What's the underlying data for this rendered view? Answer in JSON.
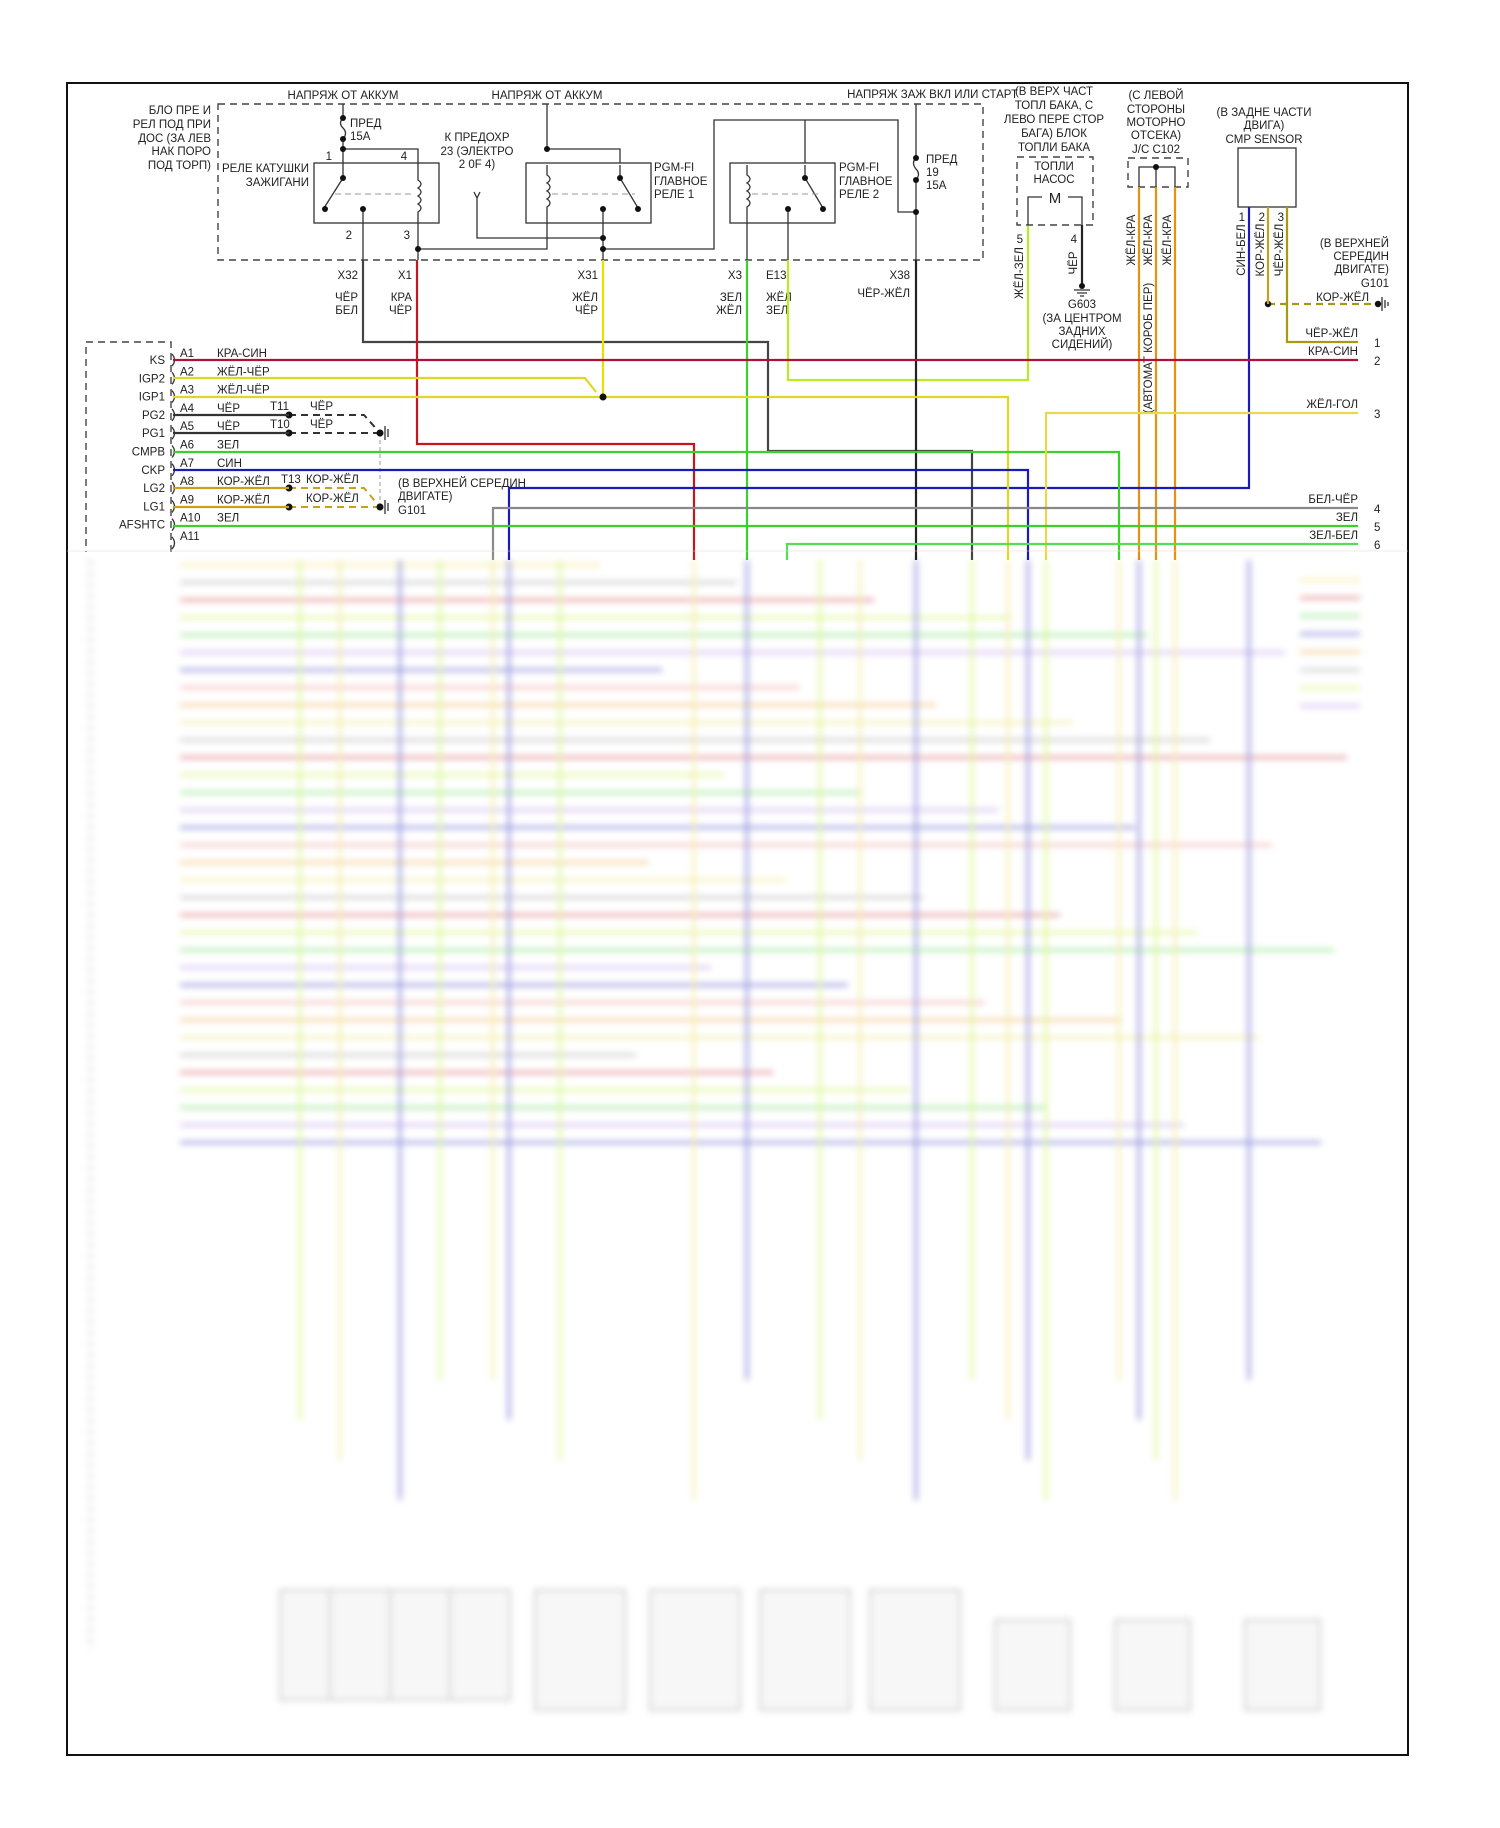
{
  "header_labels": {
    "battery_voltage_1": "НАПРЯЖ ОТ АККУМ",
    "battery_voltage_2": "НАПРЯЖ ОТ АККУМ",
    "ignition_voltage": "НАПРЯЖ ЗАЖ ВКЛ ИЛИ СТАРТ"
  },
  "fuse_box_location": [
    "БЛО ПРЕ И",
    "РЕЛ ПОД ПРИ",
    "ДОС (ЗА ЛЕВ",
    "НАК ПОРО",
    "ПОД ТОРП)"
  ],
  "fuse_15a": [
    "ПРЕД",
    "15А"
  ],
  "ignition_relay": {
    "label": [
      "РЕЛЕ КАТУШКИ",
      "ЗАЖИГАНИ"
    ],
    "pins": [
      "1",
      "4",
      "2",
      "3"
    ]
  },
  "to_fuse": [
    "К ПРЕДОХР",
    "23 (ЭЛЕКТРО",
    "2 0F 4)"
  ],
  "main_relay_1": [
    "PGM-FI",
    "ГЛАВНОЕ",
    "РЕЛЕ 1"
  ],
  "main_relay_2": [
    "PGM-FI",
    "ГЛАВНОЕ",
    "РЕЛЕ 2"
  ],
  "fuse_19": [
    "ПРЕД",
    "19",
    "15А"
  ],
  "fuel_pump": {
    "location": [
      "(В ВЕРХ ЧАСТ",
      "ТОПЛ БАКА, С",
      "ЛЕВО ПЕРЕ СТОР",
      "БАГА) БЛОК",
      "ТОПЛИ БАКА"
    ],
    "label": [
      "ТОПЛИ",
      "НАСОС"
    ],
    "motor": "M",
    "pins": [
      "5",
      "4"
    ],
    "wires": [
      "ЖЁЛ-ЗЕЛ",
      "ЧЁР"
    ]
  },
  "ground_g603": [
    "G603",
    "(ЗА ЦЕНТРОМ",
    "ЗАДНИХ",
    "СИДЕНИЙ)"
  ],
  "junction_c102": {
    "location": [
      "(С ЛЕВОЙ",
      "СТОРОНЫ",
      "МОТОРНО",
      "ОТСЕКА)",
      "J/C C102"
    ],
    "wires": [
      "ЖЁЛ-КРА",
      "ЖЁЛ-КРА",
      "ЖЁЛ-КРА"
    ],
    "note": "(АВТОМАТ КОРОБ ПЕР)"
  },
  "cmp_sensor": {
    "location": [
      "(В ЗАДНЕ ЧАСТИ",
      "ДВИГА)",
      "CMP SENSOR"
    ],
    "pins": [
      "1",
      "2",
      "3"
    ],
    "wires": [
      "СИН-БЕЛ",
      "КОР-ЖЁЛ",
      "ЧЁР-ЖЁЛ"
    ]
  },
  "ground_g101_right": {
    "location": [
      "(В ВЕРХНЕЙ",
      "СЕРЕДИН",
      "ДВИГАТЕ)",
      "G101"
    ],
    "wire": "КОР-ЖЁЛ"
  },
  "connectors": [
    {
      "id": "X32",
      "wire": [
        "ЧЁР",
        "БЕЛ"
      ]
    },
    {
      "id": "X1",
      "wire": [
        "КРА",
        "ЧЁР"
      ]
    },
    {
      "id": "X31",
      "wire": [
        "ЖЁЛ",
        "ЧЁР"
      ]
    },
    {
      "id": "X3",
      "wire": [
        "ЗЕЛ",
        "ЖЁЛ"
      ]
    },
    {
      "id": "E13",
      "wire": [
        "ЖЁЛ",
        "ЗЕЛ"
      ]
    },
    {
      "id": "X38",
      "wire": [
        "ЧЁР-ЖЁЛ"
      ]
    }
  ],
  "ecm_pins": [
    {
      "signal": "KS",
      "pin": "A1",
      "wire": "КРА-СИН"
    },
    {
      "signal": "IGP2",
      "pin": "A2",
      "wire": "ЖЁЛ-ЧЁР"
    },
    {
      "signal": "IGP1",
      "pin": "A3",
      "wire": "ЖЁЛ-ЧЁР"
    },
    {
      "signal": "PG2",
      "pin": "A4",
      "wire": "ЧЁР"
    },
    {
      "signal": "PG1",
      "pin": "A5",
      "wire": "ЧЁР"
    },
    {
      "signal": "CMPB",
      "pin": "A6",
      "wire": "ЗЕЛ"
    },
    {
      "signal": "CKP",
      "pin": "A7",
      "wire": "СИН"
    },
    {
      "signal": "LG2",
      "pin": "A8",
      "wire": "КОР-ЖЁЛ"
    },
    {
      "signal": "LG1",
      "pin": "A9",
      "wire": "КОР-ЖЁЛ"
    },
    {
      "signal": "AFSHTC",
      "pin": "A10",
      "wire": "ЗЕЛ"
    },
    {
      "signal": "",
      "pin": "A11",
      "wire": ""
    }
  ],
  "splices": [
    {
      "id": "T11",
      "wire": "ЧЁР"
    },
    {
      "id": "T10",
      "wire": "ЧЁР"
    },
    {
      "id": "T13",
      "wire": "КОР-ЖЁЛ"
    },
    {
      "id": "",
      "wire": "КОР-ЖЁЛ"
    }
  ],
  "ground_g101_left": [
    "(В ВЕРХНЕЙ СЕРЕДИН",
    "ДВИГАТЕ)",
    "G101"
  ],
  "right_terminals": [
    {
      "wire": "ЧЁР-ЖЁЛ",
      "num": "1"
    },
    {
      "wire": "КРА-СИН",
      "num": "2"
    },
    {
      "wire": "ЖЁЛ-ГОЛ",
      "num": "3"
    },
    {
      "wire": "БЕЛ-ЧЁР",
      "num": "4"
    },
    {
      "wire": "ЗЕЛ",
      "num": "5"
    },
    {
      "wire": "ЗЕЛ-БЕЛ",
      "num": "6"
    }
  ],
  "wire_colors": {
    "red_blue": "#b0103c",
    "red": "#c8161c",
    "yellow": "#e8e000",
    "yellow_olive": "#a89a10",
    "black": "#222222",
    "green": "#3ad12a",
    "lime": "#b8ee20",
    "blue": "#1a1ab8",
    "brown_yellow": "#c8a020",
    "orange": "#e89010",
    "gray": "#8a8a8a"
  }
}
